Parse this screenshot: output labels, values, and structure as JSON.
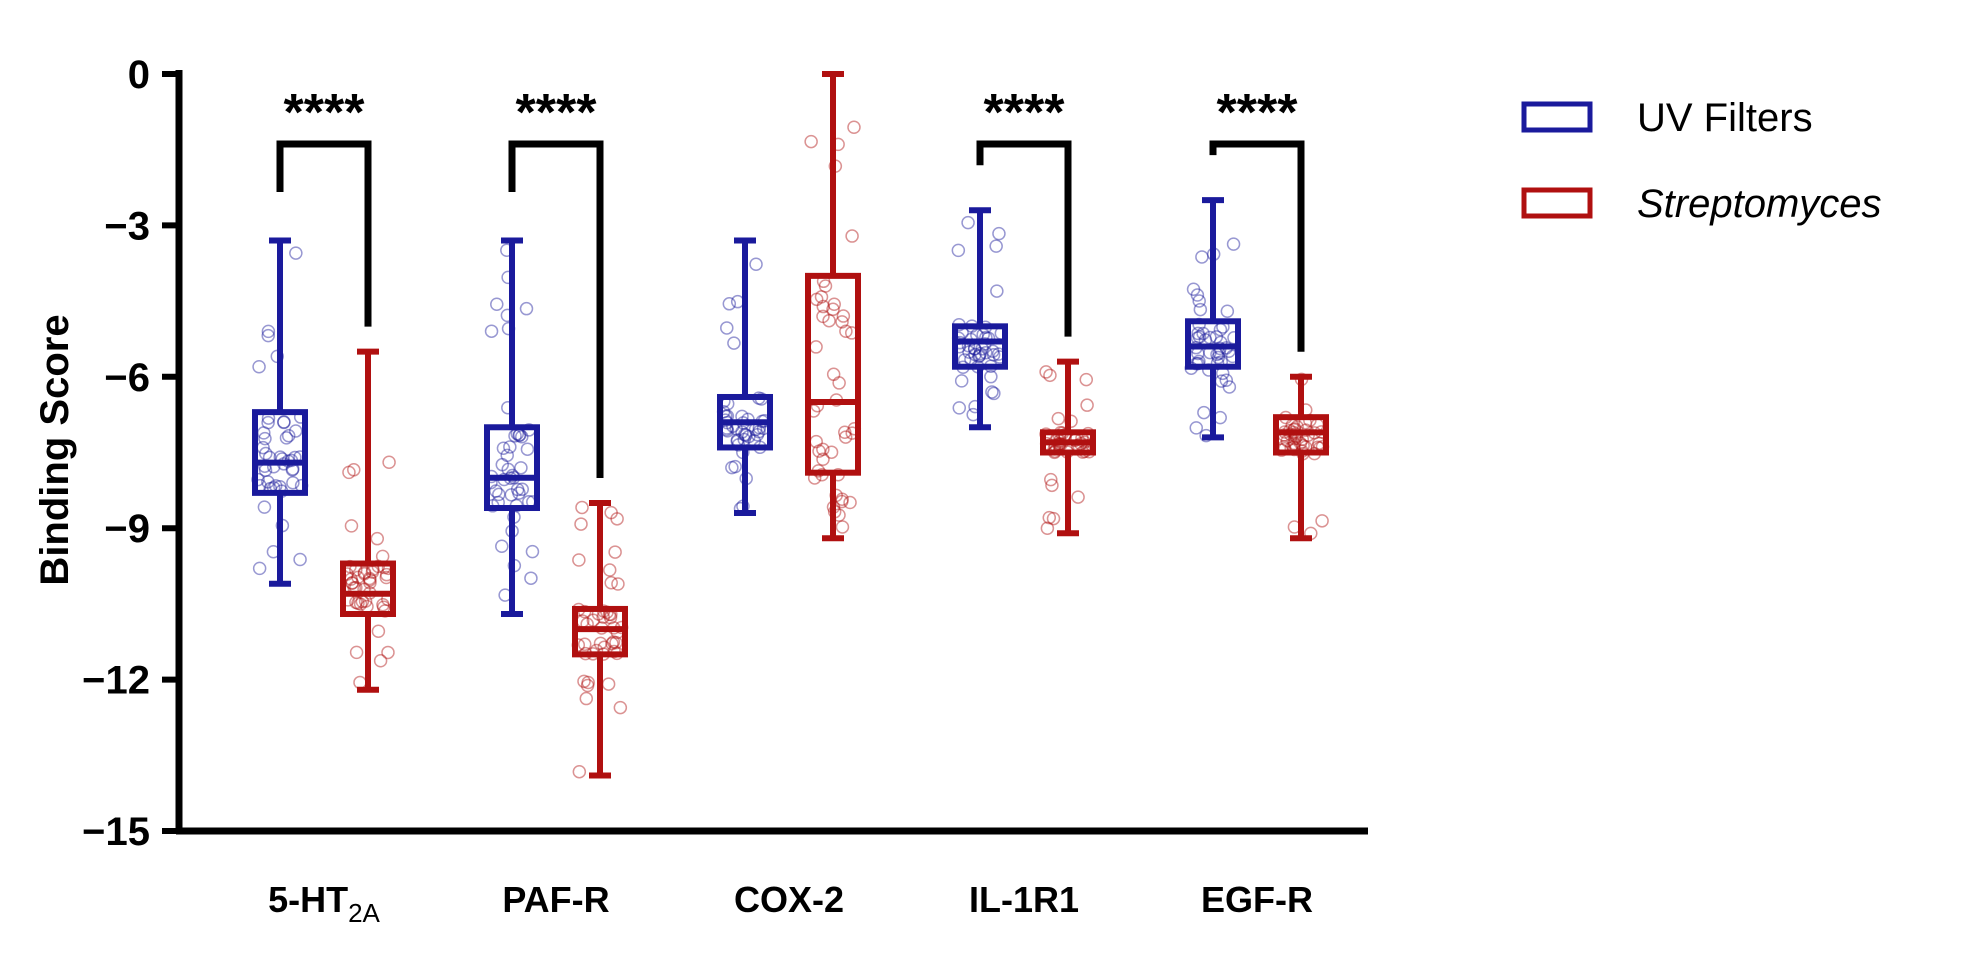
{
  "chart_data": {
    "type": "box",
    "ylabel": "Binding Score",
    "ylim": [
      -15,
      0
    ],
    "yticks": [
      0,
      -3,
      -6,
      -9,
      -12,
      -15
    ],
    "ytick_labels": [
      "0",
      "−3",
      "−6",
      "−9",
      "−12",
      "−15"
    ],
    "categories": [
      {
        "main": "5-HT",
        "sub": "2A"
      },
      {
        "main": "PAF-R",
        "sub": ""
      },
      {
        "main": "COX-2",
        "sub": ""
      },
      {
        "main": "IL-1R1",
        "sub": ""
      },
      {
        "main": "EGF-R",
        "sub": ""
      }
    ],
    "series": [
      {
        "name": "UV Filters",
        "italic": false,
        "color": "#1a1a9c",
        "boxes": [
          {
            "min": -10.1,
            "q1": -8.3,
            "median": -7.7,
            "q3": -6.7,
            "max": -3.3
          },
          {
            "min": -10.7,
            "q1": -8.6,
            "median": -8.0,
            "q3": -7.0,
            "max": -3.3
          },
          {
            "min": -8.7,
            "q1": -7.4,
            "median": -6.9,
            "q3": -6.4,
            "max": -3.3
          },
          {
            "min": -7.0,
            "q1": -5.8,
            "median": -5.3,
            "q3": -5.0,
            "max": -2.7
          },
          {
            "min": -7.2,
            "q1": -5.8,
            "median": -5.4,
            "q3": -4.9,
            "max": -2.5
          }
        ]
      },
      {
        "name": "Streptomyces",
        "italic": true,
        "color": "#b01010",
        "boxes": [
          {
            "min": -12.2,
            "q1": -10.7,
            "median": -10.3,
            "q3": -9.7,
            "max": -5.5
          },
          {
            "min": -13.9,
            "q1": -11.5,
            "median": -11.0,
            "q3": -10.6,
            "max": -8.5
          },
          {
            "min": -9.2,
            "q1": -7.9,
            "median": -6.5,
            "q3": -4.0,
            "max": 0.0
          },
          {
            "min": -9.1,
            "q1": -7.5,
            "median": -7.3,
            "q3": -7.1,
            "max": -5.7
          },
          {
            "min": -9.2,
            "q1": -7.5,
            "median": -7.1,
            "q3": -6.8,
            "max": -6.0
          }
        ]
      }
    ],
    "significance": [
      {
        "category": 0,
        "label": "****"
      },
      {
        "category": 1,
        "label": "****"
      },
      {
        "category": 3,
        "label": "****"
      },
      {
        "category": 4,
        "label": "****"
      }
    ],
    "legend_position": "top-right"
  }
}
